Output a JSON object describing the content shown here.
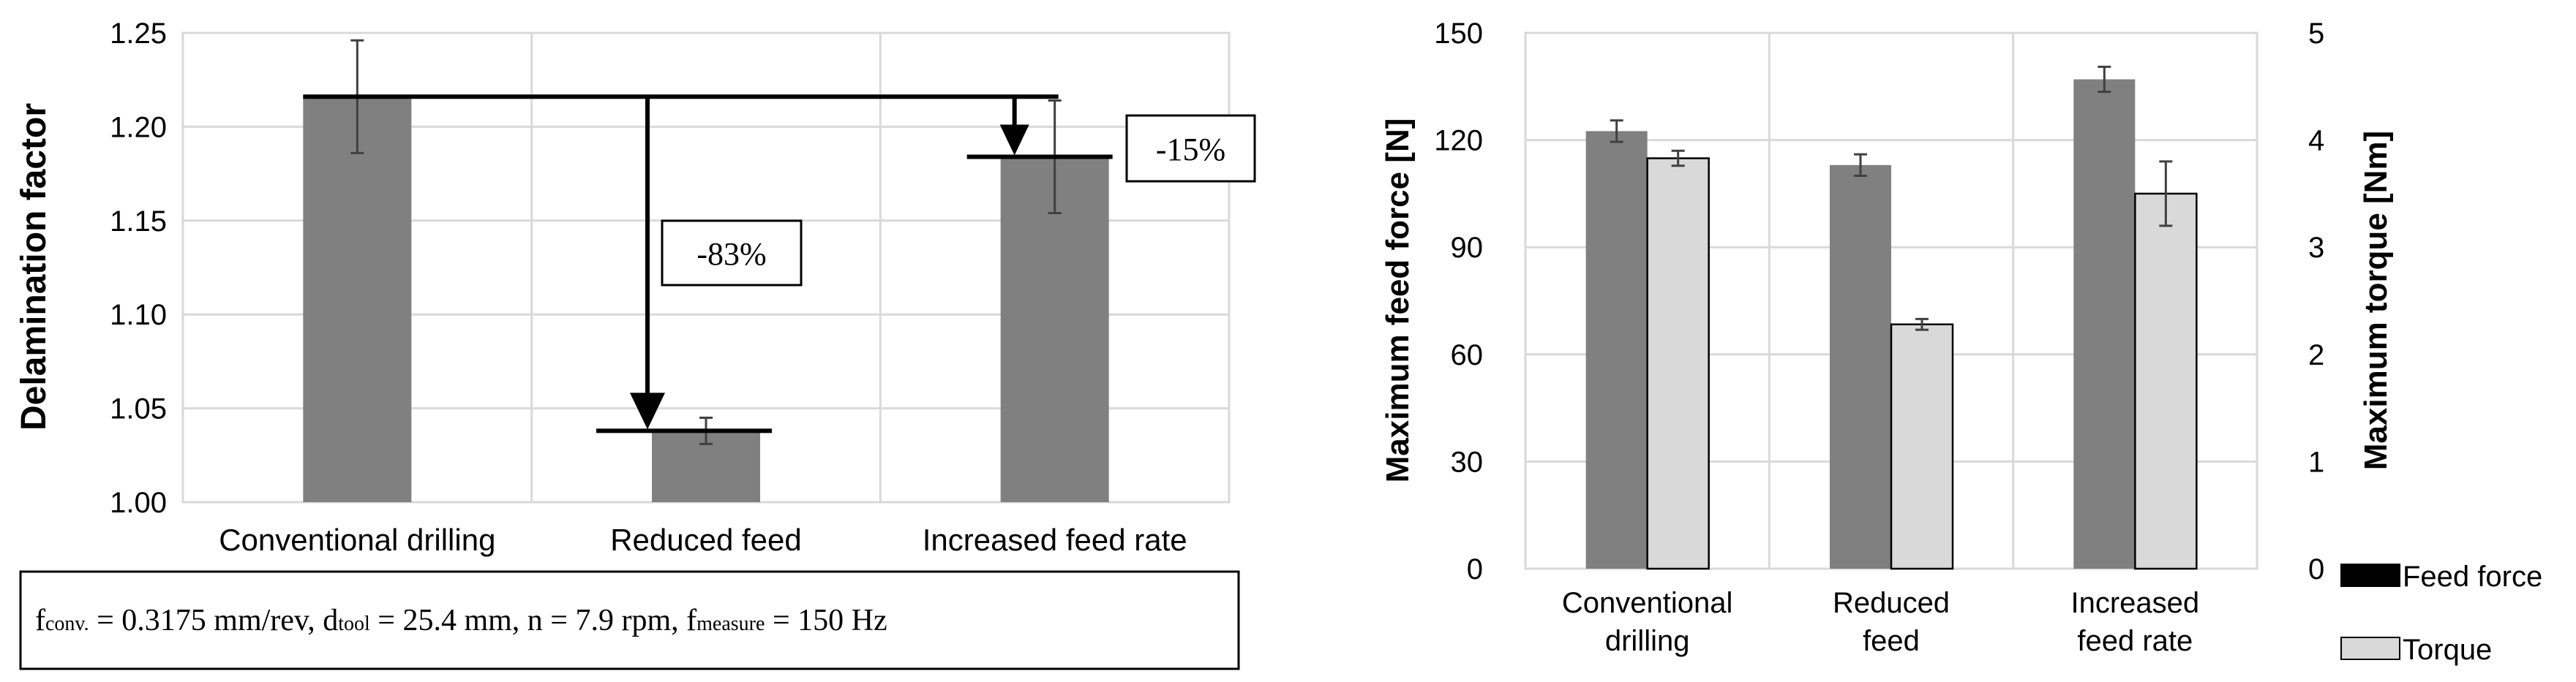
{
  "chart_data": [
    {
      "type": "bar",
      "ylabel": "Delamination  factor",
      "ylim": [
        1.0,
        1.25
      ],
      "yticks": [
        "1.00",
        "1.05",
        "1.10",
        "1.15",
        "1.20",
        "1.25"
      ],
      "grid": true,
      "categories": [
        "Conventional drilling",
        "Reduced feed",
        "Increased feed rate"
      ],
      "values": [
        1.216,
        1.038,
        1.184
      ],
      "errors": [
        0.03,
        0.007,
        0.03
      ],
      "bar_color": "#808080",
      "annotations": [
        {
          "text": "-83%",
          "from_category": "Conventional drilling",
          "to_category": "Reduced feed"
        },
        {
          "text": "-15%",
          "from_category": "Conventional drilling",
          "to_category": "Increased feed rate"
        }
      ],
      "footnote": {
        "f_sym": "f",
        "f_sub": "conv.",
        "f_val": " = 0.3175 mm/rev, ",
        "d_sym": "d",
        "d_sub": "tool",
        "d_val": " = 25.4 mm, n = 7.9 rpm, ",
        "m_sym": "f",
        "m_sub": "measure",
        "m_val": " = 150 Hz"
      }
    },
    {
      "type": "bar",
      "ylabel": "Maximum feed force [N]",
      "y2label": "Maximum torque [Nm]",
      "ylim": [
        0,
        150
      ],
      "y2lim": [
        0,
        5
      ],
      "yticks": [
        "0",
        "30",
        "60",
        "90",
        "120",
        "150"
      ],
      "y2ticks": [
        "0",
        "1",
        "2",
        "3",
        "4",
        "5"
      ],
      "grid": true,
      "categories": [
        {
          "line1": "Conventional",
          "line2": "drilling"
        },
        {
          "line1": "Reduced",
          "line2": "feed"
        },
        {
          "line1": "Increased",
          "line2": "feed rate"
        }
      ],
      "series": [
        {
          "name": "Feed force",
          "axis": "left",
          "values": [
            122.5,
            113,
            137
          ],
          "errors": [
            3,
            3,
            3.5
          ],
          "color": "#808080",
          "legend_color": "#000000"
        },
        {
          "name": "Torque",
          "axis": "right",
          "values": [
            3.83,
            2.28,
            3.5
          ],
          "errors": [
            0.07,
            0.05,
            0.3
          ],
          "color": "#d9d9d9",
          "legend_color": "#d9d9d9"
        }
      ],
      "legend": "right"
    }
  ]
}
